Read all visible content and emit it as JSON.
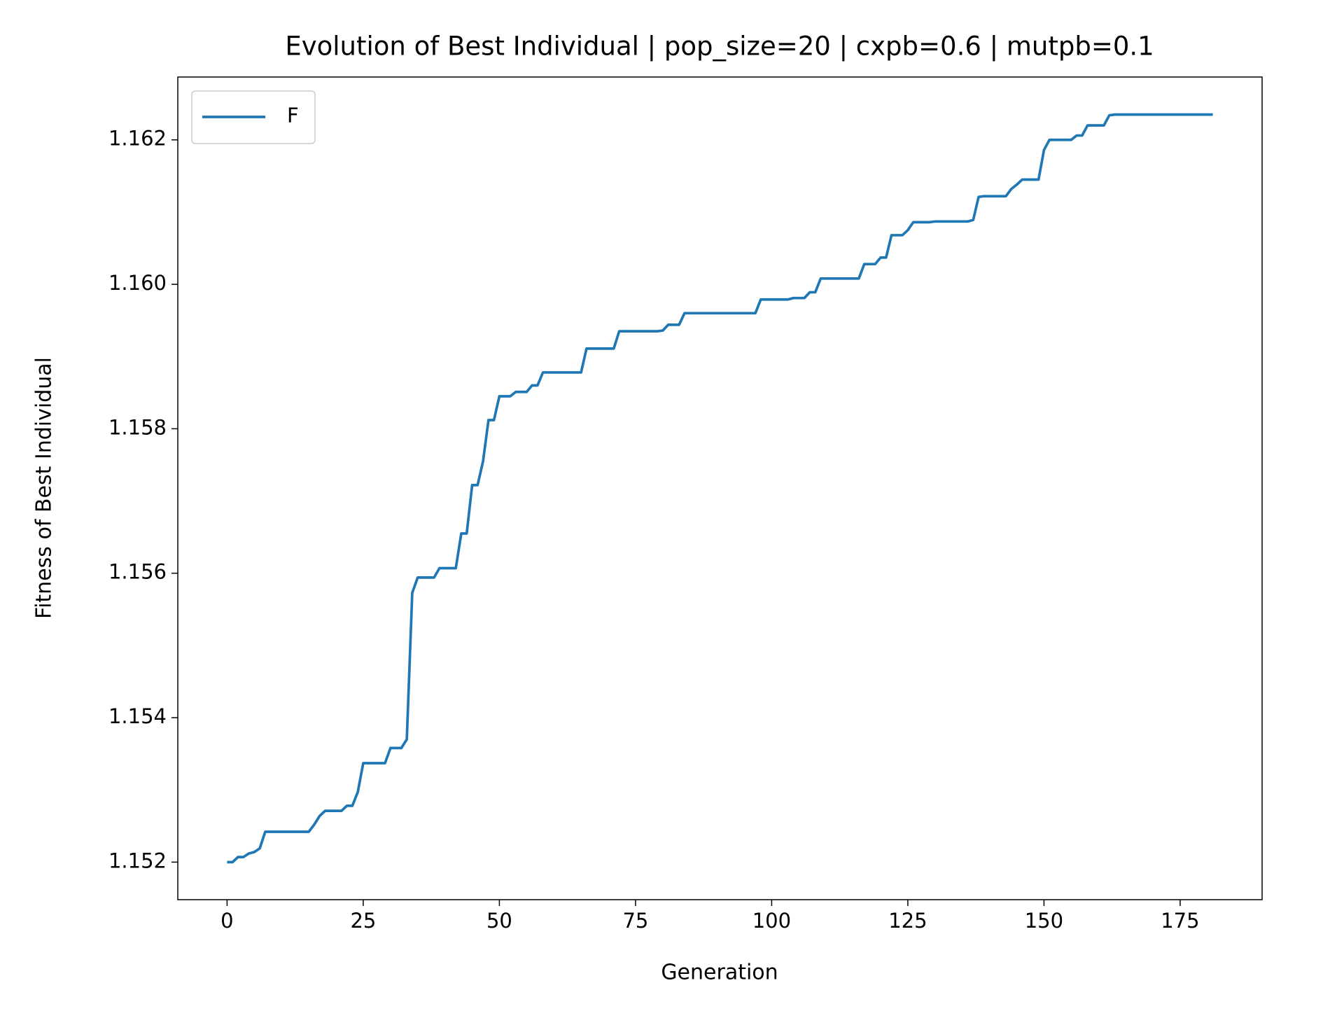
{
  "chart_data": {
    "type": "line",
    "title": "Evolution of Best Individual | pop_size=20 | cxpb=0.6 | mutpb=0.1",
    "x_label": "Generation",
    "y_label": "Fitness of Best Individual",
    "x": [
      0,
      1,
      2,
      3,
      4,
      5,
      6,
      7,
      8,
      9,
      10,
      11,
      12,
      13,
      14,
      15,
      16,
      17,
      18,
      19,
      20,
      21,
      22,
      23,
      24,
      25,
      26,
      27,
      28,
      29,
      30,
      31,
      32,
      33,
      34,
      35,
      36,
      37,
      38,
      39,
      40,
      41,
      42,
      43,
      44,
      45,
      46,
      47,
      48,
      49,
      50,
      51,
      52,
      53,
      54,
      55,
      56,
      57,
      58,
      59,
      60,
      61,
      62,
      63,
      64,
      65,
      66,
      67,
      68,
      69,
      70,
      71,
      72,
      73,
      74,
      75,
      76,
      77,
      78,
      79,
      80,
      81,
      82,
      83,
      84,
      85,
      86,
      87,
      88,
      89,
      90,
      91,
      92,
      93,
      94,
      95,
      96,
      97,
      98,
      99,
      100,
      101,
      102,
      103,
      104,
      105,
      106,
      107,
      108,
      109,
      110,
      111,
      112,
      113,
      114,
      115,
      116,
      117,
      118,
      119,
      120,
      121,
      122,
      123,
      124,
      125,
      126,
      127,
      128,
      129,
      130,
      131,
      132,
      133,
      134,
      135,
      136,
      137,
      138,
      139,
      140,
      141,
      142,
      143,
      144,
      145,
      146,
      147,
      148,
      149,
      150,
      151,
      152,
      153,
      154,
      155,
      156,
      157,
      158,
      159,
      160,
      161,
      162,
      163,
      164,
      165,
      166,
      167,
      168,
      169,
      170,
      171,
      172,
      173,
      174,
      175,
      176,
      177,
      178,
      179,
      180,
      181
    ],
    "series": [
      {
        "name": "F",
        "color": "#1f77b4",
        "values": [
          1.152,
          1.152,
          1.15207,
          1.15207,
          1.15212,
          1.15214,
          1.15219,
          1.15242,
          1.15242,
          1.15242,
          1.15242,
          1.15242,
          1.15242,
          1.15242,
          1.15242,
          1.15242,
          1.15252,
          1.15264,
          1.15271,
          1.15271,
          1.15271,
          1.15271,
          1.15278,
          1.15278,
          1.15297,
          1.15337,
          1.15337,
          1.15337,
          1.15337,
          1.15337,
          1.15358,
          1.15358,
          1.15358,
          1.1537,
          1.15573,
          1.15594,
          1.15594,
          1.15594,
          1.15594,
          1.15607,
          1.15607,
          1.15607,
          1.15607,
          1.15655,
          1.15655,
          1.15722,
          1.15722,
          1.15755,
          1.15812,
          1.15812,
          1.15845,
          1.15845,
          1.15845,
          1.15851,
          1.15851,
          1.15851,
          1.1586,
          1.1586,
          1.15878,
          1.15878,
          1.15878,
          1.15878,
          1.15878,
          1.15878,
          1.15878,
          1.15878,
          1.15911,
          1.15911,
          1.15911,
          1.15911,
          1.15911,
          1.15911,
          1.15935,
          1.15935,
          1.15935,
          1.15935,
          1.15935,
          1.15935,
          1.15935,
          1.15935,
          1.15936,
          1.15944,
          1.15944,
          1.15944,
          1.1596,
          1.1596,
          1.1596,
          1.1596,
          1.1596,
          1.1596,
          1.1596,
          1.1596,
          1.1596,
          1.1596,
          1.1596,
          1.1596,
          1.1596,
          1.1596,
          1.15979,
          1.15979,
          1.15979,
          1.15979,
          1.15979,
          1.15979,
          1.15981,
          1.15981,
          1.15981,
          1.15989,
          1.15989,
          1.16008,
          1.16008,
          1.16008,
          1.16008,
          1.16008,
          1.16008,
          1.16008,
          1.16008,
          1.16028,
          1.16028,
          1.16028,
          1.16037,
          1.16037,
          1.16068,
          1.16068,
          1.16068,
          1.16075,
          1.16086,
          1.16086,
          1.16086,
          1.16086,
          1.16087,
          1.16087,
          1.16087,
          1.16087,
          1.16087,
          1.16087,
          1.16087,
          1.16089,
          1.16121,
          1.16122,
          1.16122,
          1.16122,
          1.16122,
          1.16122,
          1.16132,
          1.16138,
          1.16145,
          1.16145,
          1.16145,
          1.16145,
          1.16186,
          1.162,
          1.162,
          1.162,
          1.162,
          1.162,
          1.16206,
          1.16206,
          1.1622,
          1.1622,
          1.1622,
          1.1622,
          1.16234,
          1.16235,
          1.16235,
          1.16235,
          1.16235,
          1.16235,
          1.16235,
          1.16235,
          1.16235,
          1.16235,
          1.16235,
          1.16235,
          1.16235,
          1.16235,
          1.16235,
          1.16235,
          1.16235,
          1.16235,
          1.16235,
          1.16235
        ]
      }
    ],
    "xlim": [
      -9.05,
      190.05
    ],
    "ylim": [
      1.15148,
      1.16287
    ],
    "xticks": [
      0,
      25,
      50,
      75,
      100,
      125,
      150,
      175
    ],
    "yticks": [
      1.152,
      1.154,
      1.156,
      1.158,
      {
        "value": 1.16,
        "label": "1.160"
      },
      1.162
    ],
    "grid": false,
    "legend": "upper left"
  }
}
